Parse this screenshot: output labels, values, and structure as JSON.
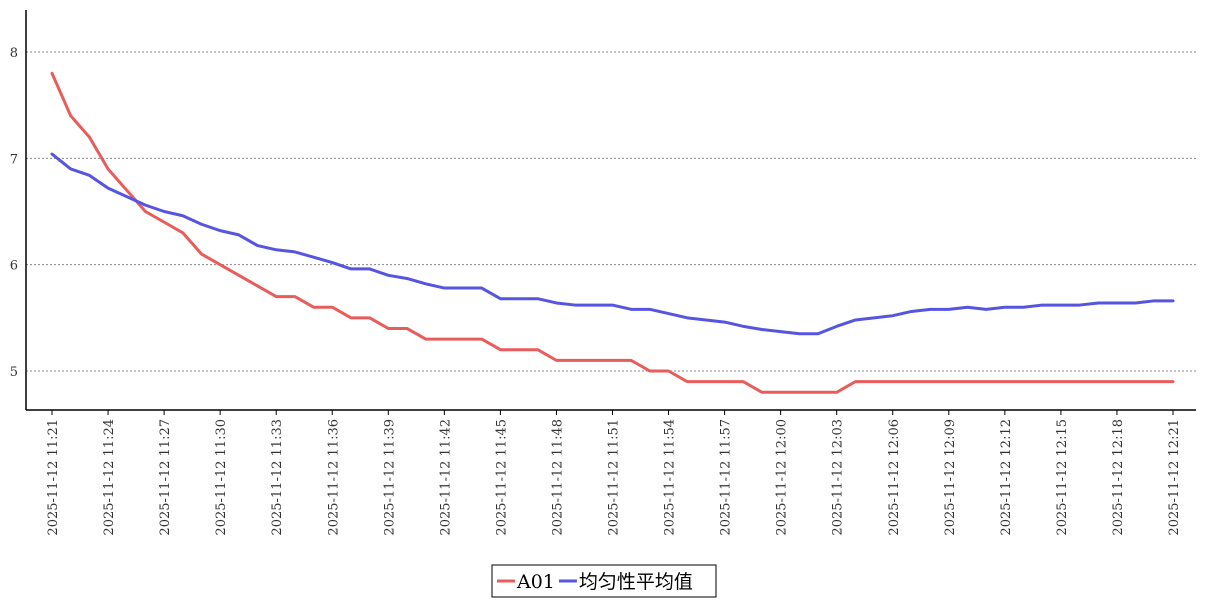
{
  "chart_data": {
    "type": "line",
    "title": "",
    "xlabel": "",
    "ylabel": "",
    "ylim": [
      4.6,
      8.4
    ],
    "yticks": [
      "5",
      "6",
      "7",
      "8"
    ],
    "grid": "horizontal dotted",
    "legend_position": "bottom-center",
    "x": [
      "2025-11-12 11:21",
      "2025-11-12 11:22",
      "2025-11-12 11:23",
      "2025-11-12 11:24",
      "2025-11-12 11:25",
      "2025-11-12 11:26",
      "2025-11-12 11:27",
      "2025-11-12 11:28",
      "2025-11-12 11:29",
      "2025-11-12 11:30",
      "2025-11-12 11:31",
      "2025-11-12 11:32",
      "2025-11-12 11:33",
      "2025-11-12 11:34",
      "2025-11-12 11:35",
      "2025-11-12 11:36",
      "2025-11-12 11:37",
      "2025-11-12 11:38",
      "2025-11-12 11:39",
      "2025-11-12 11:40",
      "2025-11-12 11:41",
      "2025-11-12 11:42",
      "2025-11-12 11:43",
      "2025-11-12 11:44",
      "2025-11-12 11:45",
      "2025-11-12 11:46",
      "2025-11-12 11:47",
      "2025-11-12 11:48",
      "2025-11-12 11:49",
      "2025-11-12 11:50",
      "2025-11-12 11:51",
      "2025-11-12 11:52",
      "2025-11-12 11:53",
      "2025-11-12 11:54",
      "2025-11-12 11:55",
      "2025-11-12 11:56",
      "2025-11-12 11:57",
      "2025-11-12 11:58",
      "2025-11-12 11:59",
      "2025-11-12 12:00",
      "2025-11-12 12:01",
      "2025-11-12 12:02",
      "2025-11-12 12:03",
      "2025-11-12 12:04",
      "2025-11-12 12:05",
      "2025-11-12 12:06",
      "2025-11-12 12:07",
      "2025-11-12 12:08",
      "2025-11-12 12:09",
      "2025-11-12 12:10",
      "2025-11-12 12:11",
      "2025-11-12 12:12",
      "2025-11-12 12:13",
      "2025-11-12 12:14",
      "2025-11-12 12:15",
      "2025-11-12 12:16",
      "2025-11-12 12:17",
      "2025-11-12 12:18",
      "2025-11-12 12:19",
      "2025-11-12 12:20",
      "2025-11-12 12:21"
    ],
    "xticks": [
      "2025-11-12 11:21",
      "2025-11-12 11:24",
      "2025-11-12 11:27",
      "2025-11-12 11:30",
      "2025-11-12 11:33",
      "2025-11-12 11:36",
      "2025-11-12 11:39",
      "2025-11-12 11:42",
      "2025-11-12 11:45",
      "2025-11-12 11:48",
      "2025-11-12 11:51",
      "2025-11-12 11:54",
      "2025-11-12 11:57",
      "2025-11-12 12:00",
      "2025-11-12 12:03",
      "2025-11-12 12:06",
      "2025-11-12 12:09",
      "2025-11-12 12:12",
      "2025-11-12 12:15",
      "2025-11-12 12:18",
      "2025-11-12 12:21"
    ],
    "series": [
      {
        "name": "A01",
        "color": "#e85c5c",
        "values": [
          7.8,
          7.4,
          7.2,
          6.9,
          6.7,
          6.5,
          6.4,
          6.3,
          6.1,
          6.0,
          5.9,
          5.8,
          5.7,
          5.7,
          5.6,
          5.6,
          5.5,
          5.5,
          5.4,
          5.4,
          5.3,
          5.3,
          5.3,
          5.3,
          5.2,
          5.2,
          5.2,
          5.1,
          5.1,
          5.1,
          5.1,
          5.1,
          5.0,
          5.0,
          4.9,
          4.9,
          4.9,
          4.9,
          4.8,
          4.8,
          4.8,
          4.8,
          4.8,
          4.9,
          4.9,
          4.9,
          4.9,
          4.9,
          4.9,
          4.9,
          4.9,
          4.9,
          4.9,
          4.9,
          4.9,
          4.9,
          4.9,
          4.9,
          4.9,
          4.9,
          4.9
        ]
      },
      {
        "name": "均匀性平均值",
        "color": "#5555e0",
        "values": [
          7.04,
          6.9,
          6.84,
          6.72,
          6.64,
          6.56,
          6.5,
          6.46,
          6.38,
          6.32,
          6.28,
          6.18,
          6.14,
          6.12,
          6.07,
          6.02,
          5.96,
          5.96,
          5.9,
          5.87,
          5.82,
          5.78,
          5.78,
          5.78,
          5.68,
          5.68,
          5.68,
          5.64,
          5.62,
          5.62,
          5.62,
          5.58,
          5.58,
          5.54,
          5.5,
          5.48,
          5.46,
          5.42,
          5.39,
          5.37,
          5.35,
          5.35,
          5.42,
          5.48,
          5.5,
          5.52,
          5.56,
          5.58,
          5.58,
          5.6,
          5.58,
          5.6,
          5.6,
          5.62,
          5.62,
          5.62,
          5.64,
          5.64,
          5.64,
          5.66,
          5.66
        ]
      }
    ]
  }
}
